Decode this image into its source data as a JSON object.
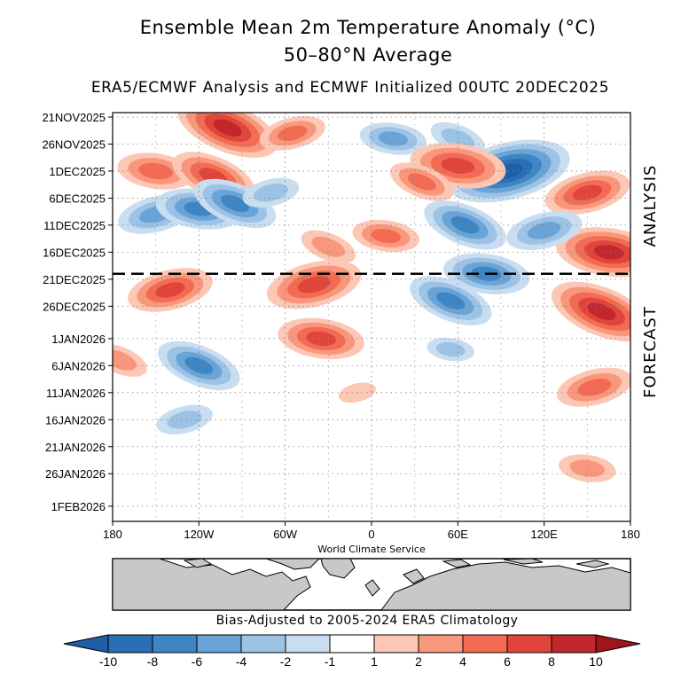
{
  "chart_data": {
    "type": "heatmap",
    "title": "Ensemble Mean 2m Temperature Anomaly (°C)",
    "subtitle": "50–80°N Average",
    "caption": "ERA5/ECMWF Analysis and ECMWF Initialized 00UTC 20DEC2025",
    "x_tick_labels": [
      "180",
      "120W",
      "60W",
      "0",
      "60E",
      "120E",
      "180"
    ],
    "x_tick_values": [
      -180,
      -120,
      -60,
      0,
      60,
      120,
      180
    ],
    "xlim": [
      -180,
      180
    ],
    "y_tick_labels": [
      "21NOV2025",
      "26NOV2025",
      "1DEC2025",
      "6DEC2025",
      "11DEC2025",
      "16DEC2025",
      "21DEC2025",
      "26DEC2025",
      "1JAN2026",
      "6JAN2026",
      "11JAN2026",
      "16JAN2026",
      "21JAN2026",
      "26JAN2026",
      "1FEB2026"
    ],
    "y_tick_values": [
      "2025-11-21",
      "2025-11-26",
      "2025-12-01",
      "2025-12-06",
      "2025-12-11",
      "2025-12-16",
      "2025-12-21",
      "2025-12-26",
      "2026-01-01",
      "2026-01-06",
      "2026-01-11",
      "2026-01-16",
      "2026-01-21",
      "2026-01-26",
      "2026-02-01"
    ],
    "ylim": [
      "2025-11-21",
      "2026-02-03"
    ],
    "initialization_line": "2025-12-20",
    "period_labels": {
      "analysis": "ANALYSIS",
      "forecast": "FORECAST"
    },
    "credit": "World Climate Service",
    "climatology_note": "Bias-Adjusted to 2005-2024 ERA5 Climatology",
    "grid": true,
    "colorbar": {
      "ticks": [
        "-10",
        "-8",
        "-6",
        "-4",
        "-2",
        "-1",
        "1",
        "2",
        "4",
        "6",
        "8",
        "10"
      ],
      "bins": [
        {
          "lo": -10,
          "hi": -8,
          "color": "#2a6fb3"
        },
        {
          "lo": -8,
          "hi": -6,
          "color": "#3d85c3"
        },
        {
          "lo": -6,
          "hi": -4,
          "color": "#6aa4d6"
        },
        {
          "lo": -4,
          "hi": -2,
          "color": "#9cc3e5"
        },
        {
          "lo": -2,
          "hi": -1,
          "color": "#c9ddf0"
        },
        {
          "lo": -1,
          "hi": 1,
          "color": "#ffffff"
        },
        {
          "lo": 1,
          "hi": 2,
          "color": "#fcc7b5"
        },
        {
          "lo": 2,
          "hi": 4,
          "color": "#f9977c"
        },
        {
          "lo": 4,
          "hi": 6,
          "color": "#f26b52"
        },
        {
          "lo": 6,
          "hi": 8,
          "color": "#e0443a"
        },
        {
          "lo": 8,
          "hi": 10,
          "color": "#c1272d"
        }
      ],
      "under_color": "#1f5ea8",
      "over_color": "#a0141c"
    },
    "anomaly_features": [
      {
        "lon": -100,
        "date": "2025-11-23",
        "value": 8
      },
      {
        "lon": -55,
        "date": "2025-11-24",
        "value": 4
      },
      {
        "lon": -150,
        "date": "2025-12-01",
        "value": 5
      },
      {
        "lon": -110,
        "date": "2025-12-02",
        "value": 6
      },
      {
        "lon": -150,
        "date": "2025-12-09",
        "value": -5
      },
      {
        "lon": -120,
        "date": "2025-12-08",
        "value": -6
      },
      {
        "lon": -95,
        "date": "2025-12-07",
        "value": -6
      },
      {
        "lon": -70,
        "date": "2025-12-05",
        "value": -3
      },
      {
        "lon": 15,
        "date": "2025-11-25",
        "value": -4
      },
      {
        "lon": 60,
        "date": "2025-11-25",
        "value": -3
      },
      {
        "lon": 95,
        "date": "2025-12-01",
        "value": -10
      },
      {
        "lon": 60,
        "date": "2025-11-30",
        "value": 7
      },
      {
        "lon": 35,
        "date": "2025-12-03",
        "value": 4
      },
      {
        "lon": 150,
        "date": "2025-12-05",
        "value": 6
      },
      {
        "lon": 165,
        "date": "2025-12-16",
        "value": 8
      },
      {
        "lon": 65,
        "date": "2025-12-11",
        "value": -6
      },
      {
        "lon": 120,
        "date": "2025-12-12",
        "value": -5
      },
      {
        "lon": 10,
        "date": "2025-12-13",
        "value": 4
      },
      {
        "lon": -30,
        "date": "2025-12-15",
        "value": 3
      },
      {
        "lon": -40,
        "date": "2025-12-22",
        "value": 7
      },
      {
        "lon": 80,
        "date": "2025-12-20",
        "value": -6
      },
      {
        "lon": 55,
        "date": "2025-12-25",
        "value": -6
      },
      {
        "lon": -140,
        "date": "2025-12-23",
        "value": 6
      },
      {
        "lon": -35,
        "date": "2026-01-01",
        "value": 6
      },
      {
        "lon": -120,
        "date": "2026-01-06",
        "value": -6
      },
      {
        "lon": -130,
        "date": "2026-01-16",
        "value": -3
      },
      {
        "lon": 55,
        "date": "2026-01-03",
        "value": -2
      },
      {
        "lon": 160,
        "date": "2025-12-27",
        "value": 8
      },
      {
        "lon": 155,
        "date": "2026-01-10",
        "value": 5
      },
      {
        "lon": 150,
        "date": "2026-01-25",
        "value": 3
      },
      {
        "lon": -175,
        "date": "2026-01-05",
        "value": 3
      },
      {
        "lon": -10,
        "date": "2026-01-11",
        "value": 1
      }
    ]
  }
}
